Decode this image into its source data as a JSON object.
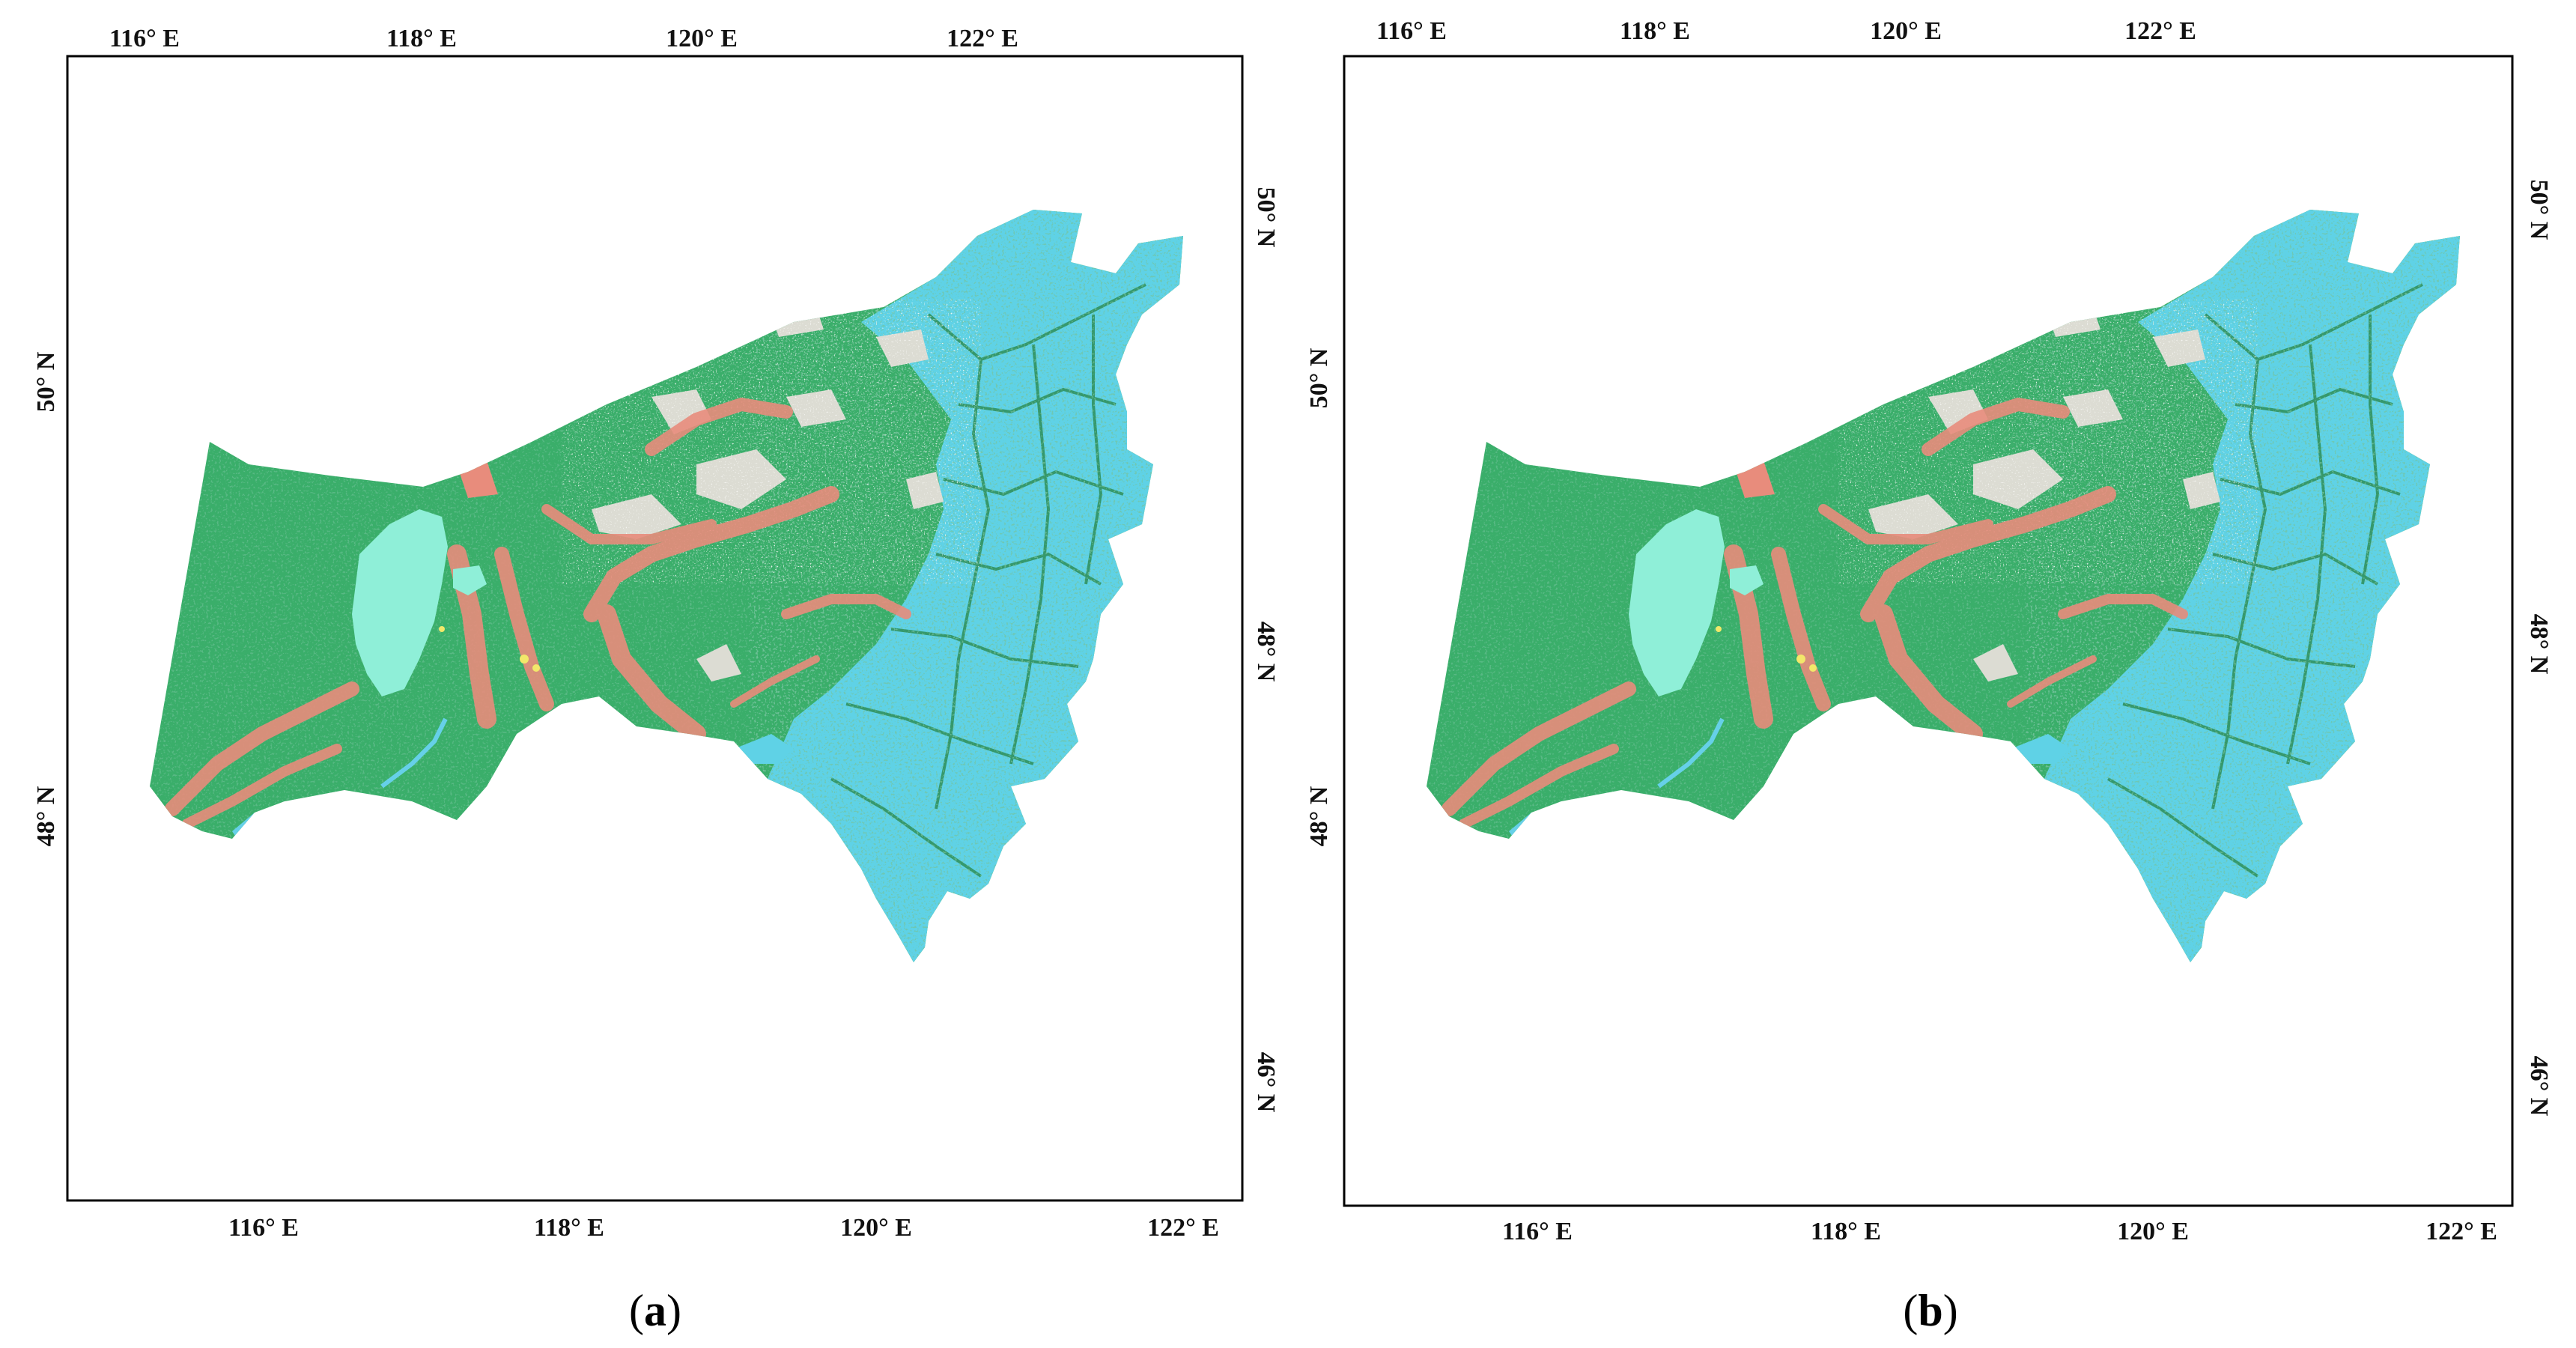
{
  "colors": {
    "grassland": "#3aae6a",
    "grassland_dark": "#2e8f57",
    "forest": "#5fd2e6",
    "lake": "#8fefd8",
    "water": "#66d0e8",
    "cropland": "#e88c7c",
    "bare_land": "#dcdcd3",
    "sand": "#f2e86a",
    "frame": "#000000"
  },
  "panels": [
    {
      "label_open": "(",
      "label_letter": "a",
      "label_close": ")",
      "top_ticks": [
        "116° E",
        "118° E",
        "120° E",
        "122° E"
      ],
      "bottom_ticks": [
        "116° E",
        "118° E",
        "120° E",
        "122° E"
      ],
      "left_ticks": [
        "50° N",
        "48° N"
      ],
      "right_ticks": [
        "50° N",
        "48° N",
        "46° N"
      ]
    },
    {
      "label_open": "(",
      "label_letter": "b",
      "label_close": ")",
      "top_ticks": [
        "116° E",
        "118° E",
        "120° E",
        "122° E"
      ],
      "bottom_ticks": [
        "116° E",
        "118° E",
        "120° E",
        "122° E"
      ],
      "left_ticks": [
        "50° N",
        "48° N"
      ],
      "right_ticks": [
        "50° N",
        "48° N",
        "46° N"
      ]
    }
  ]
}
